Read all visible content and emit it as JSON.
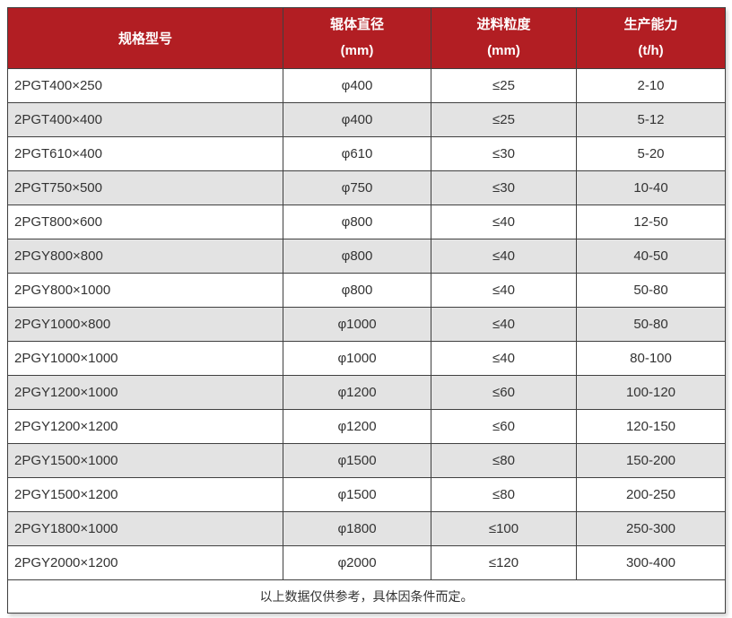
{
  "chart_data": {
    "type": "table",
    "columns": [
      "规格型号",
      "辊体直径 (mm)",
      "进料粒度 (mm)",
      "生产能力 (t/h)"
    ],
    "rows": [
      [
        "2PGT400×250",
        "φ400",
        "≤25",
        "2-10"
      ],
      [
        "2PGT400×400",
        "φ400",
        "≤25",
        "5-12"
      ],
      [
        "2PGT610×400",
        "φ610",
        "≤30",
        "5-20"
      ],
      [
        "2PGT750×500",
        "φ750",
        "≤30",
        "10-40"
      ],
      [
        "2PGT800×600",
        "φ800",
        "≤40",
        "12-50"
      ],
      [
        "2PGY800×800",
        "φ800",
        "≤40",
        "40-50"
      ],
      [
        "2PGY800×1000",
        "φ800",
        "≤40",
        "50-80"
      ],
      [
        "2PGY1000×800",
        "φ1000",
        "≤40",
        "50-80"
      ],
      [
        "2PGY1000×1000",
        "φ1000",
        "≤40",
        "80-100"
      ],
      [
        "2PGY1200×1000",
        "φ1200",
        "≤60",
        "100-120"
      ],
      [
        "2PGY1200×1200",
        "φ1200",
        "≤60",
        "120-150"
      ],
      [
        "2PGY1500×1000",
        "φ1500",
        "≤80",
        "150-200"
      ],
      [
        "2PGY1500×1200",
        "φ1500",
        "≤80",
        "200-250"
      ],
      [
        "2PGY1800×1000",
        "φ1800",
        "≤100",
        "250-300"
      ],
      [
        "2PGY2000×1200",
        "φ2000",
        "≤120",
        "300-400"
      ]
    ],
    "footnote": "以上数据仅供参考，具体因条件而定。"
  },
  "header": {
    "model": "规格型号",
    "col2": {
      "line1": "辊体直径",
      "line2": "(mm)"
    },
    "col3": {
      "line1": "进料粒度",
      "line2": "(mm)"
    },
    "col4": {
      "line1": "生产能力",
      "line2": "(t/h)"
    }
  },
  "footer": {
    "note": "以上数据仅供参考，具体因条件而定。"
  },
  "colors": {
    "header_bg": "#b21e23",
    "header_text": "#ffffff",
    "alt_row_bg": "#e3e3e3",
    "border": "#404040",
    "body_text": "#333333"
  }
}
